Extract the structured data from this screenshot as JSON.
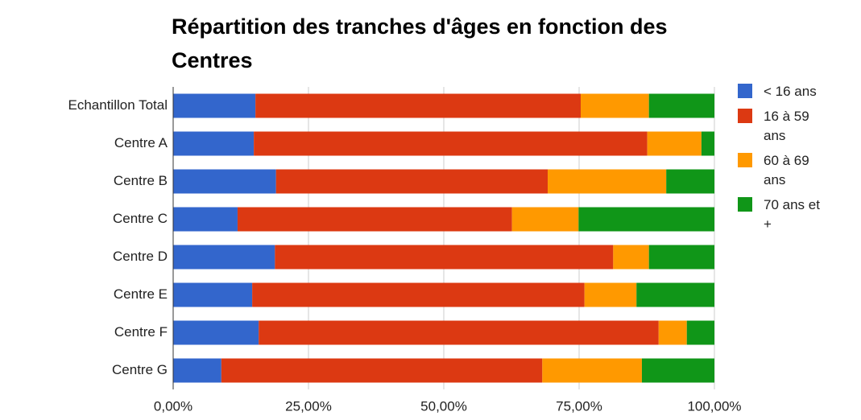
{
  "chart_data": {
    "type": "bar_stacked_horizontal",
    "title": "Répartition des tranches d'âges en fonction des Centres",
    "categories": [
      "Echantillon Total",
      "Centre A",
      "Centre B",
      "Centre C",
      "Centre D",
      "Centre E",
      "Centre F",
      "Centre G"
    ],
    "series": [
      {
        "name": "< 16 ans",
        "color": "#3366cc",
        "values": [
          15.2,
          14.9,
          19.0,
          11.9,
          18.8,
          14.6,
          15.8,
          8.9
        ]
      },
      {
        "name": "16 à 59 ans",
        "color": "#dc3912",
        "values": [
          60.1,
          72.7,
          50.2,
          50.7,
          62.5,
          61.4,
          73.9,
          59.3
        ]
      },
      {
        "name": "60 à 69 ans",
        "color": "#ff9900",
        "values": [
          12.6,
          10.0,
          21.9,
          12.3,
          6.6,
          9.6,
          5.2,
          18.4
        ]
      },
      {
        "name": "70 ans et +",
        "color": "#109618",
        "values": [
          12.1,
          2.4,
          8.9,
          25.1,
          12.1,
          14.4,
          5.1,
          13.4
        ]
      }
    ],
    "xlim": [
      0,
      100
    ],
    "xticks": [
      {
        "value": 0,
        "label": "0,00%"
      },
      {
        "value": 25,
        "label": "25,00%"
      },
      {
        "value": 50,
        "label": "50,00%"
      },
      {
        "value": 75,
        "label": "75,00%"
      },
      {
        "value": 100,
        "label": "100,00%"
      }
    ],
    "grid": true,
    "legend": "right"
  }
}
